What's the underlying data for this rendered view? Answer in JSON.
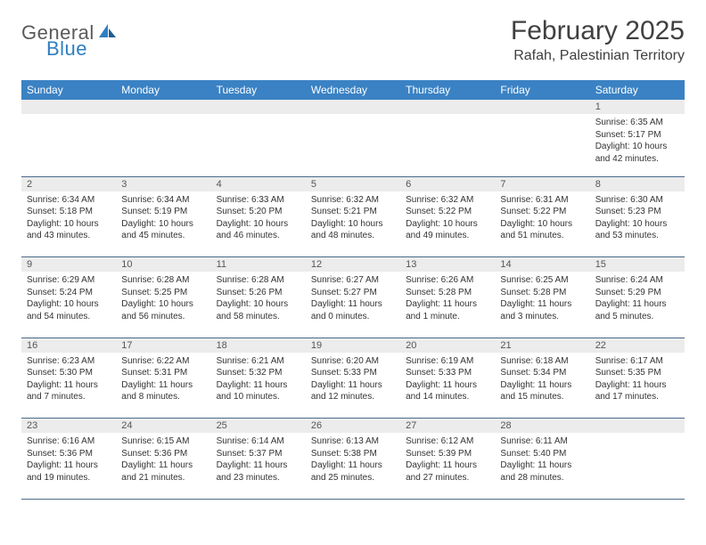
{
  "brand": {
    "part1": "General",
    "part2": "Blue"
  },
  "title": "February 2025",
  "location": "Rafah, Palestinian Territory",
  "colors": {
    "header_bg": "#3a82c4",
    "daynum_bg": "#ececec",
    "rule": "#4a6a8a",
    "logo_blue": "#2f7ec0"
  },
  "day_headers": [
    "Sunday",
    "Monday",
    "Tuesday",
    "Wednesday",
    "Thursday",
    "Friday",
    "Saturday"
  ],
  "weeks": [
    [
      null,
      null,
      null,
      null,
      null,
      null,
      {
        "n": "1",
        "sr": "Sunrise: 6:35 AM",
        "ss": "Sunset: 5:17 PM",
        "dl": "Daylight: 10 hours and 42 minutes."
      }
    ],
    [
      {
        "n": "2",
        "sr": "Sunrise: 6:34 AM",
        "ss": "Sunset: 5:18 PM",
        "dl": "Daylight: 10 hours and 43 minutes."
      },
      {
        "n": "3",
        "sr": "Sunrise: 6:34 AM",
        "ss": "Sunset: 5:19 PM",
        "dl": "Daylight: 10 hours and 45 minutes."
      },
      {
        "n": "4",
        "sr": "Sunrise: 6:33 AM",
        "ss": "Sunset: 5:20 PM",
        "dl": "Daylight: 10 hours and 46 minutes."
      },
      {
        "n": "5",
        "sr": "Sunrise: 6:32 AM",
        "ss": "Sunset: 5:21 PM",
        "dl": "Daylight: 10 hours and 48 minutes."
      },
      {
        "n": "6",
        "sr": "Sunrise: 6:32 AM",
        "ss": "Sunset: 5:22 PM",
        "dl": "Daylight: 10 hours and 49 minutes."
      },
      {
        "n": "7",
        "sr": "Sunrise: 6:31 AM",
        "ss": "Sunset: 5:22 PM",
        "dl": "Daylight: 10 hours and 51 minutes."
      },
      {
        "n": "8",
        "sr": "Sunrise: 6:30 AM",
        "ss": "Sunset: 5:23 PM",
        "dl": "Daylight: 10 hours and 53 minutes."
      }
    ],
    [
      {
        "n": "9",
        "sr": "Sunrise: 6:29 AM",
        "ss": "Sunset: 5:24 PM",
        "dl": "Daylight: 10 hours and 54 minutes."
      },
      {
        "n": "10",
        "sr": "Sunrise: 6:28 AM",
        "ss": "Sunset: 5:25 PM",
        "dl": "Daylight: 10 hours and 56 minutes."
      },
      {
        "n": "11",
        "sr": "Sunrise: 6:28 AM",
        "ss": "Sunset: 5:26 PM",
        "dl": "Daylight: 10 hours and 58 minutes."
      },
      {
        "n": "12",
        "sr": "Sunrise: 6:27 AM",
        "ss": "Sunset: 5:27 PM",
        "dl": "Daylight: 11 hours and 0 minutes."
      },
      {
        "n": "13",
        "sr": "Sunrise: 6:26 AM",
        "ss": "Sunset: 5:28 PM",
        "dl": "Daylight: 11 hours and 1 minute."
      },
      {
        "n": "14",
        "sr": "Sunrise: 6:25 AM",
        "ss": "Sunset: 5:28 PM",
        "dl": "Daylight: 11 hours and 3 minutes."
      },
      {
        "n": "15",
        "sr": "Sunrise: 6:24 AM",
        "ss": "Sunset: 5:29 PM",
        "dl": "Daylight: 11 hours and 5 minutes."
      }
    ],
    [
      {
        "n": "16",
        "sr": "Sunrise: 6:23 AM",
        "ss": "Sunset: 5:30 PM",
        "dl": "Daylight: 11 hours and 7 minutes."
      },
      {
        "n": "17",
        "sr": "Sunrise: 6:22 AM",
        "ss": "Sunset: 5:31 PM",
        "dl": "Daylight: 11 hours and 8 minutes."
      },
      {
        "n": "18",
        "sr": "Sunrise: 6:21 AM",
        "ss": "Sunset: 5:32 PM",
        "dl": "Daylight: 11 hours and 10 minutes."
      },
      {
        "n": "19",
        "sr": "Sunrise: 6:20 AM",
        "ss": "Sunset: 5:33 PM",
        "dl": "Daylight: 11 hours and 12 minutes."
      },
      {
        "n": "20",
        "sr": "Sunrise: 6:19 AM",
        "ss": "Sunset: 5:33 PM",
        "dl": "Daylight: 11 hours and 14 minutes."
      },
      {
        "n": "21",
        "sr": "Sunrise: 6:18 AM",
        "ss": "Sunset: 5:34 PM",
        "dl": "Daylight: 11 hours and 15 minutes."
      },
      {
        "n": "22",
        "sr": "Sunrise: 6:17 AM",
        "ss": "Sunset: 5:35 PM",
        "dl": "Daylight: 11 hours and 17 minutes."
      }
    ],
    [
      {
        "n": "23",
        "sr": "Sunrise: 6:16 AM",
        "ss": "Sunset: 5:36 PM",
        "dl": "Daylight: 11 hours and 19 minutes."
      },
      {
        "n": "24",
        "sr": "Sunrise: 6:15 AM",
        "ss": "Sunset: 5:36 PM",
        "dl": "Daylight: 11 hours and 21 minutes."
      },
      {
        "n": "25",
        "sr": "Sunrise: 6:14 AM",
        "ss": "Sunset: 5:37 PM",
        "dl": "Daylight: 11 hours and 23 minutes."
      },
      {
        "n": "26",
        "sr": "Sunrise: 6:13 AM",
        "ss": "Sunset: 5:38 PM",
        "dl": "Daylight: 11 hours and 25 minutes."
      },
      {
        "n": "27",
        "sr": "Sunrise: 6:12 AM",
        "ss": "Sunset: 5:39 PM",
        "dl": "Daylight: 11 hours and 27 minutes."
      },
      {
        "n": "28",
        "sr": "Sunrise: 6:11 AM",
        "ss": "Sunset: 5:40 PM",
        "dl": "Daylight: 11 hours and 28 minutes."
      },
      null
    ]
  ]
}
